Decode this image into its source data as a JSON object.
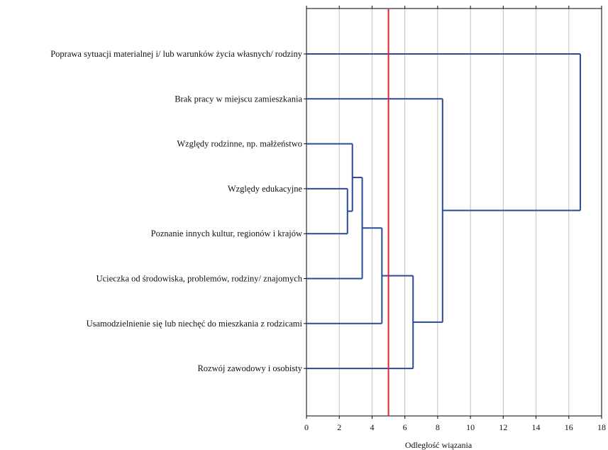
{
  "chart_data": {
    "type": "dendrogram",
    "title": "",
    "xlabel": "Odległość wiązania",
    "ylabel": "",
    "xlim": [
      0,
      18
    ],
    "xticks": [
      0,
      2,
      4,
      6,
      8,
      10,
      12,
      14,
      16,
      18
    ],
    "grid": true,
    "leaves": [
      "Poprawa sytuacji materialnej i/ lub warunków życia własnych/ rodziny",
      "Brak pracy w miejscu zamieszkania",
      "Względy rodzinne, np. małżeństwo",
      "Względy edukacyjne",
      "Poznanie innych kultur, regionów i krajów",
      "Ucieczka od środowiska, problemów, rodziny/ znajomych",
      "Usamodzielnienie się lub niechęć do mieszkania z rodzicami",
      "Rozwój zawodowy i osobisty"
    ],
    "merges": [
      {
        "left": 3,
        "right": 4,
        "distance": 2.5
      },
      {
        "left": 2,
        "right": "m0",
        "distance": 2.8
      },
      {
        "left": "m1",
        "right": 5,
        "distance": 3.4
      },
      {
        "left": "m2",
        "right": 6,
        "distance": 4.6
      },
      {
        "left": "m3",
        "right": 7,
        "distance": 6.5
      },
      {
        "left": 1,
        "right": "m4",
        "distance": 8.3
      },
      {
        "left": 0,
        "right": "m5",
        "distance": 16.7
      }
    ],
    "cutoff": 5.0,
    "colors": {
      "branch": "#2a4a9a",
      "cutoff": "#e3242b",
      "grid": "#c0c0c0",
      "axis": "#000000"
    }
  }
}
